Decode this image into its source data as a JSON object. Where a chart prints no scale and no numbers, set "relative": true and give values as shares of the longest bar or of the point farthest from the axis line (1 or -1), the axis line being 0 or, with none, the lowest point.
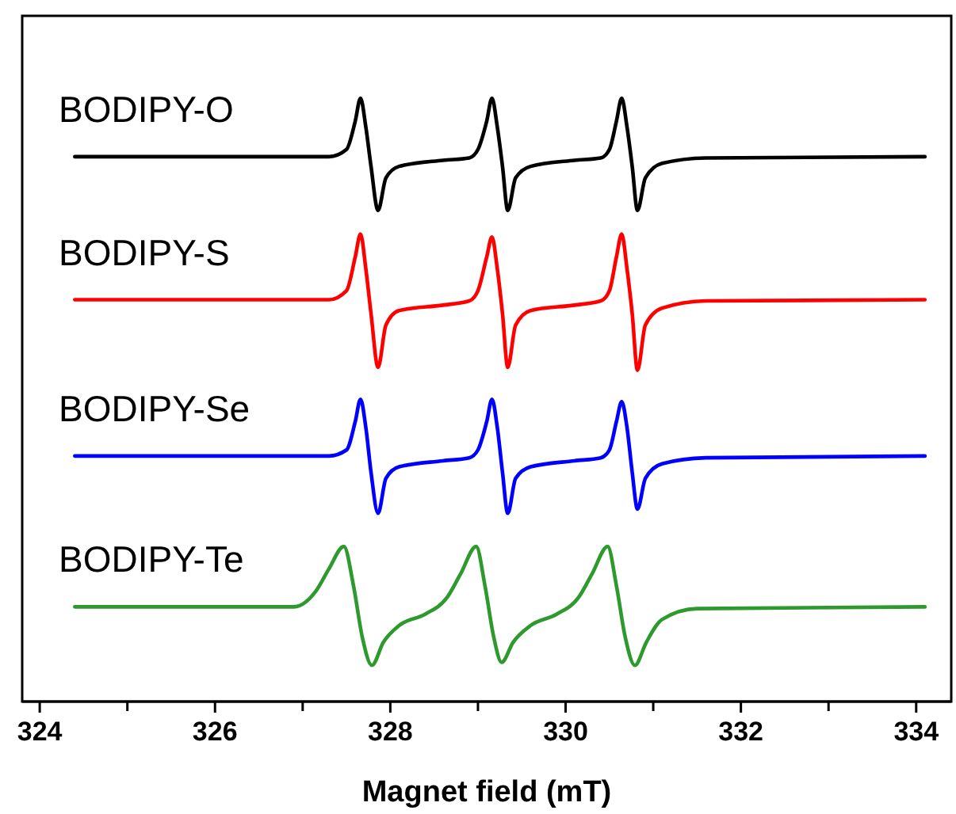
{
  "chart_data": {
    "type": "line",
    "relative": true,
    "xlabel": "Magnet field (mT)",
    "xlim": [
      323.8,
      334.4
    ],
    "xticks": [
      324,
      {
        "value": 325,
        "label": null
      },
      326,
      {
        "value": 327,
        "label": null
      },
      328,
      {
        "value": 329,
        "label": null
      },
      330,
      {
        "value": 331,
        "label": null
      },
      332,
      {
        "value": 333,
        "label": null
      },
      334
    ],
    "x": [
      324.4,
      327.3,
      327.5,
      327.6,
      327.66,
      327.72,
      327.78,
      327.86,
      327.95,
      328.1,
      328.6,
      328.9,
      329.0,
      329.1,
      329.16,
      329.22,
      329.28,
      329.34,
      329.43,
      329.6,
      330.1,
      330.4,
      330.5,
      330.58,
      330.64,
      330.7,
      330.76,
      330.82,
      330.91,
      331.1,
      331.6,
      334.1
    ],
    "series": [
      {
        "name": "BODIPY-O",
        "color": "#000000",
        "values": [
          0.903,
          0.903,
          0.915,
          0.962,
          1.0,
          0.953,
          0.887,
          0.814,
          0.868,
          0.887,
          0.897,
          0.901,
          0.915,
          0.962,
          1.0,
          0.953,
          0.887,
          0.814,
          0.868,
          0.887,
          0.897,
          0.901,
          0.915,
          0.962,
          1.0,
          0.953,
          0.887,
          0.814,
          0.868,
          0.892,
          0.901,
          0.903
        ]
      },
      {
        "name": "BODIPY-S",
        "color": "#ff0000",
        "values": [
          0.666,
          0.666,
          0.681,
          0.737,
          0.775,
          0.718,
          0.643,
          0.554,
          0.624,
          0.648,
          0.657,
          0.664,
          0.681,
          0.737,
          0.77,
          0.718,
          0.643,
          0.554,
          0.624,
          0.648,
          0.657,
          0.664,
          0.681,
          0.737,
          0.775,
          0.718,
          0.643,
          0.549,
          0.624,
          0.652,
          0.664,
          0.666
        ]
      },
      {
        "name": "BODIPY-Se",
        "color": "#0000ff",
        "values": [
          0.407,
          0.407,
          0.417,
          0.464,
          0.501,
          0.455,
          0.38,
          0.312,
          0.37,
          0.389,
          0.399,
          0.404,
          0.417,
          0.464,
          0.501,
          0.455,
          0.38,
          0.312,
          0.37,
          0.389,
          0.399,
          0.404,
          0.417,
          0.464,
          0.497,
          0.455,
          0.38,
          0.319,
          0.37,
          0.394,
          0.404,
          0.407
        ]
      },
      {
        "name": "BODIPY-Te",
        "color": "#2e9a2e",
        "x": [
          324.4,
          326.9,
          327.15,
          327.3,
          327.47,
          327.58,
          327.68,
          327.79,
          327.92,
          328.1,
          328.4,
          328.65,
          328.8,
          328.98,
          329.08,
          329.18,
          329.27,
          329.4,
          329.6,
          329.9,
          330.15,
          330.3,
          330.48,
          330.58,
          330.68,
          330.79,
          330.92,
          331.1,
          331.5,
          334.1
        ],
        "values": [
          0.157,
          0.157,
          0.183,
          0.22,
          0.257,
          0.192,
          0.107,
          0.06,
          0.098,
          0.126,
          0.145,
          0.173,
          0.211,
          0.257,
          0.192,
          0.107,
          0.065,
          0.098,
          0.126,
          0.145,
          0.173,
          0.211,
          0.257,
          0.192,
          0.107,
          0.06,
          0.098,
          0.136,
          0.154,
          0.157
        ]
      }
    ]
  }
}
